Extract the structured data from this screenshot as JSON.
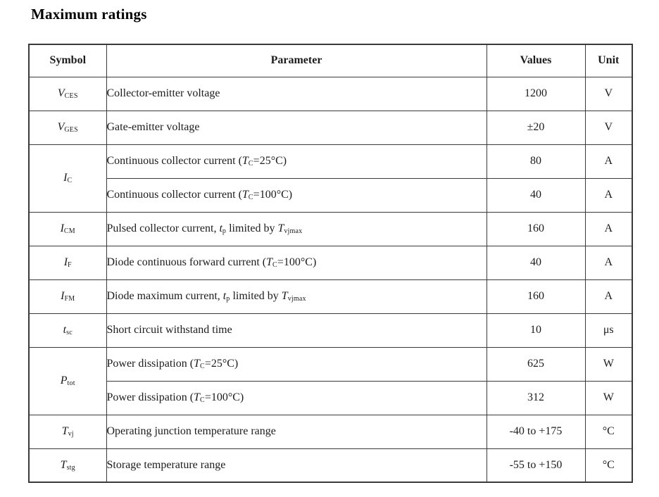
{
  "page": {
    "title": "Maximum ratings"
  },
  "table": {
    "headers": [
      "Symbol",
      "Parameter",
      "Values",
      "Unit"
    ],
    "rows": [
      {
        "symbol": "*V*~CES~",
        "parameter": "Collector-emitter voltage",
        "value": "1200",
        "unit": "V"
      },
      {
        "symbol": "*V*~GES~",
        "parameter": "Gate-emitter voltage",
        "value": "±20",
        "unit": "V"
      },
      {
        "symbol": "*I*~C~",
        "rowspan": 2,
        "parameter": "Continuous collector current (*T*~C~=25°C)",
        "value": "80",
        "unit": "A"
      },
      {
        "parameter": "Continuous collector current (*T*~C~=100°C)",
        "value": "40",
        "unit": "A"
      },
      {
        "symbol": "*I*~CM~",
        "parameter": "Pulsed collector current, *t*~p~ limited by *T*~vjmax~",
        "value": "160",
        "unit": "A"
      },
      {
        "symbol": "*I*~F~",
        "parameter": "Diode continuous forward current (*T*~C~=100°C)",
        "value": "40",
        "unit": "A"
      },
      {
        "symbol": "*I*~FM~",
        "parameter": "Diode maximum current, *t*~p~ limited by *T*~vjmax~",
        "value": "160",
        "unit": "A"
      },
      {
        "symbol": "*t*~sc~",
        "parameter": "Short circuit withstand time",
        "value": "10",
        "unit": "μs"
      },
      {
        "symbol": "*P*~tot~",
        "rowspan": 2,
        "parameter": "Power dissipation (*T*~C~=25°C)",
        "value": "625",
        "unit": "W"
      },
      {
        "parameter": "Power dissipation (*T*~C~=100°C)",
        "value": "312",
        "unit": "W"
      },
      {
        "symbol": "*T*~vj~",
        "parameter": "Operating junction temperature range",
        "value": "-40 to +175",
        "unit": "°C"
      },
      {
        "symbol": "*T*~stg~",
        "parameter": "Storage temperature range",
        "value": "-55 to +150",
        "unit": "°C"
      }
    ]
  },
  "colors": {
    "border": "#3a3a3a",
    "text": "#1c1c1c",
    "background": "#ffffff"
  }
}
